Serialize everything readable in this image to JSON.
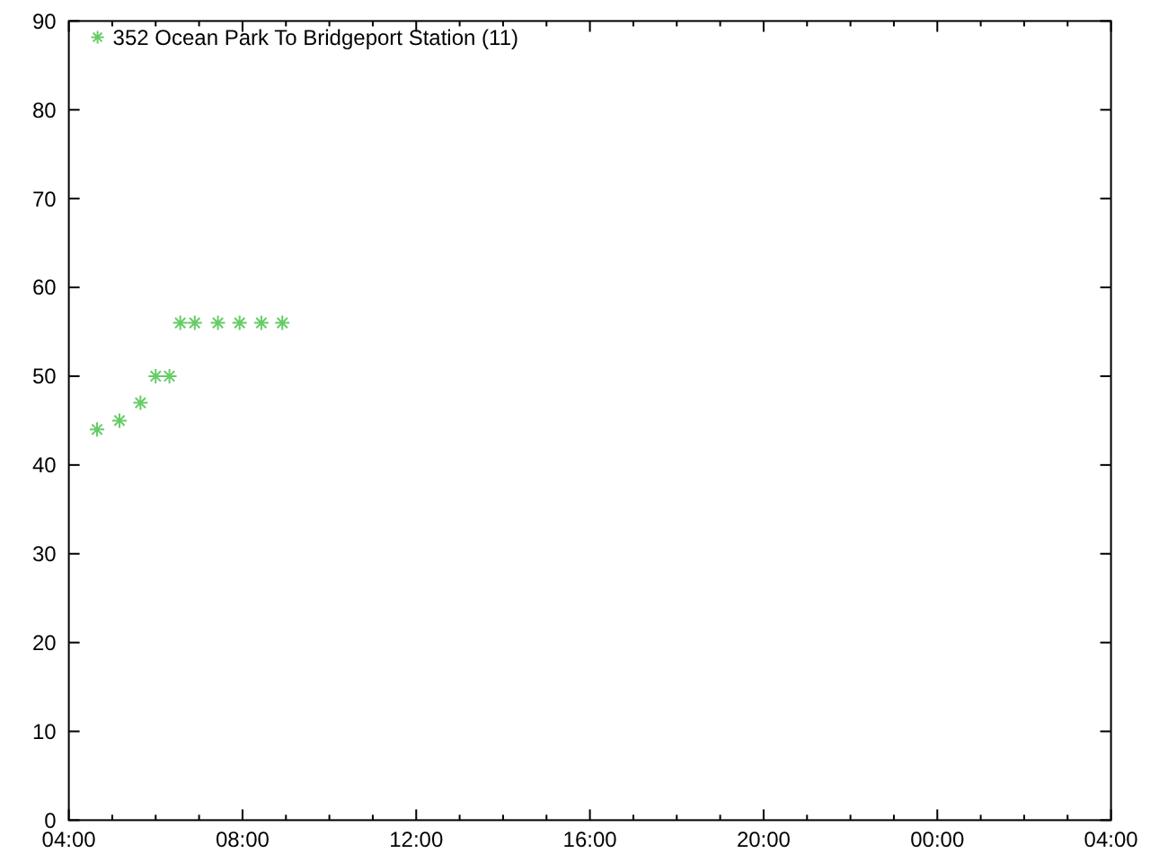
{
  "chart_data": {
    "type": "scatter",
    "x": [
      "2000-01-01T04:39",
      "2000-01-01T05:10",
      "2000-01-01T05:39",
      "2000-01-01T06:00",
      "2000-01-01T06:19",
      "2000-01-01T06:34",
      "2000-01-01T06:54",
      "2000-01-01T07:26",
      "2000-01-01T07:56",
      "2000-01-01T08:26",
      "2000-01-01T08:55"
    ],
    "series": [
      {
        "name": "352 Ocean Park To Bridgeport Station (11)",
        "color": "#66cc66",
        "values": [
          44,
          45,
          47,
          50,
          50,
          56,
          56,
          56,
          56,
          56,
          56
        ]
      }
    ],
    "xlim": [
      "2000-01-01T04:00",
      "2000-01-02T04:00"
    ],
    "xticks": [
      {
        "value": "2000-01-01T04:00",
        "label": "04:00"
      },
      {
        "value": "2000-01-01T05:00",
        "label": null
      },
      {
        "value": "2000-01-01T06:00",
        "label": null
      },
      {
        "value": "2000-01-01T07:00",
        "label": null
      },
      {
        "value": "2000-01-01T08:00",
        "label": "08:00"
      },
      {
        "value": "2000-01-01T09:00",
        "label": null
      },
      {
        "value": "2000-01-01T10:00",
        "label": null
      },
      {
        "value": "2000-01-01T11:00",
        "label": null
      },
      {
        "value": "2000-01-01T12:00",
        "label": "12:00"
      },
      {
        "value": "2000-01-01T13:00",
        "label": null
      },
      {
        "value": "2000-01-01T14:00",
        "label": null
      },
      {
        "value": "2000-01-01T15:00",
        "label": null
      },
      {
        "value": "2000-01-01T16:00",
        "label": "16:00"
      },
      {
        "value": "2000-01-01T17:00",
        "label": null
      },
      {
        "value": "2000-01-01T18:00",
        "label": null
      },
      {
        "value": "2000-01-01T19:00",
        "label": null
      },
      {
        "value": "2000-01-01T20:00",
        "label": "20:00"
      },
      {
        "value": "2000-01-01T21:00",
        "label": null
      },
      {
        "value": "2000-01-01T22:00",
        "label": null
      },
      {
        "value": "2000-01-01T23:00",
        "label": null
      },
      {
        "value": "2000-01-02T00:00",
        "label": "00:00"
      },
      {
        "value": "2000-01-02T01:00",
        "label": null
      },
      {
        "value": "2000-01-02T02:00",
        "label": null
      },
      {
        "value": "2000-01-02T03:00",
        "label": null
      },
      {
        "value": "2000-01-02T04:00",
        "label": "04:00"
      }
    ],
    "ylim": [
      0,
      90
    ],
    "yticks": [
      0,
      10,
      20,
      30,
      40,
      50,
      60,
      70,
      80,
      90
    ],
    "legend": "top left",
    "marker": "cross"
  }
}
